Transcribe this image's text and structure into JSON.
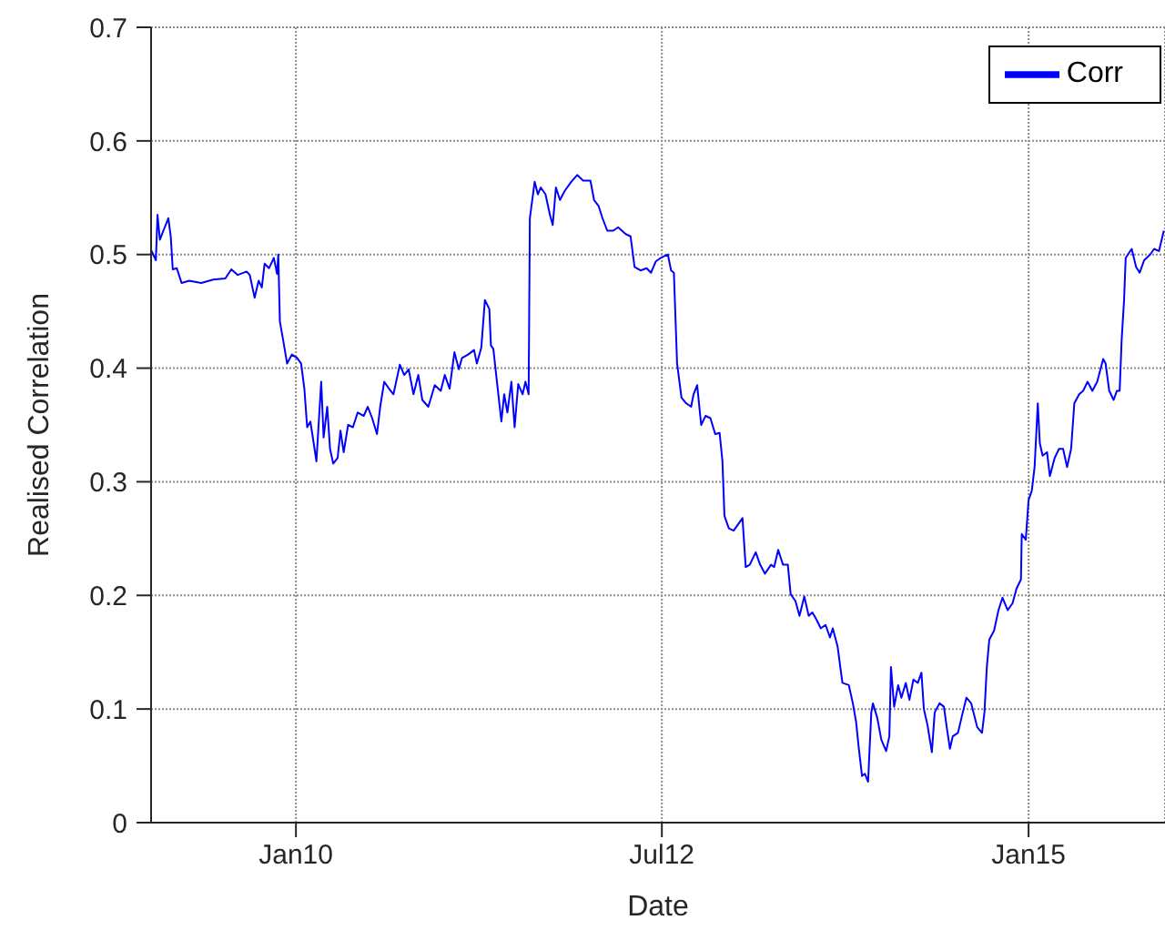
{
  "chart_data": {
    "type": "line",
    "xlabel": "Date",
    "ylabel": "Realised Correlation",
    "x": [
      "2009-01-05",
      "2009-01-17",
      "2009-01-21",
      "2009-01-27",
      "2009-02-08",
      "2009-02-17",
      "2009-02-23",
      "2009-02-28",
      "2009-03-10",
      "2009-03-22",
      "2009-04-10",
      "2009-05-10",
      "2009-06-09",
      "2009-07-09",
      "2009-07-24",
      "2009-08-09",
      "2009-08-31",
      "2009-09-08",
      "2009-09-20",
      "2009-09-30",
      "2009-10-08",
      "2009-10-15",
      "2009-10-26",
      "2009-11-07",
      "2009-11-15",
      "2009-11-18",
      "2009-11-22",
      "2009-11-30",
      "2009-12-10",
      "2009-12-22",
      "2010-01-04",
      "2010-01-14",
      "2010-01-22",
      "2010-01-29",
      "2010-02-06",
      "2010-02-13",
      "2010-02-21",
      "2010-03-05",
      "2010-03-11",
      "2010-03-20",
      "2010-03-27",
      "2010-04-04",
      "2010-04-15",
      "2010-04-22",
      "2010-04-30",
      "2010-05-11",
      "2010-05-23",
      "2010-06-04",
      "2010-06-19",
      "2010-06-29",
      "2010-07-10",
      "2010-07-22",
      "2010-07-30",
      "2010-08-09",
      "2010-08-21",
      "2010-09-01",
      "2010-09-17",
      "2010-09-28",
      "2010-10-09",
      "2010-10-21",
      "2010-11-02",
      "2010-11-12",
      "2010-11-27",
      "2010-12-13",
      "2010-12-28",
      "2011-01-07",
      "2011-01-19",
      "2011-01-31",
      "2011-02-11",
      "2011-02-19",
      "2011-03-06",
      "2011-03-21",
      "2011-03-28",
      "2011-04-08",
      "2011-04-17",
      "2011-04-28",
      "2011-05-02",
      "2011-05-08",
      "2011-05-17",
      "2011-05-28",
      "2011-06-04",
      "2011-06-12",
      "2011-06-22",
      "2011-06-30",
      "2011-07-09",
      "2011-07-20",
      "2011-07-27",
      "2011-08-04",
      "2011-08-07",
      "2011-08-19",
      "2011-08-27",
      "2011-09-03",
      "2011-09-15",
      "2011-09-26",
      "2011-10-03",
      "2011-10-11",
      "2011-10-21",
      "2011-11-02",
      "2011-11-18",
      "2011-12-03",
      "2011-12-18",
      "2012-01-05",
      "2012-01-14",
      "2012-01-25",
      "2012-02-04",
      "2012-02-16",
      "2012-03-02",
      "2012-03-14",
      "2012-04-02",
      "2012-04-14",
      "2012-04-24",
      "2012-05-09",
      "2012-05-24",
      "2012-06-04",
      "2012-06-16",
      "2012-06-28",
      "2012-07-16",
      "2012-07-24",
      "2012-07-31",
      "2012-08-08",
      "2012-08-19",
      "2012-08-31",
      "2012-09-12",
      "2012-09-18",
      "2012-09-27",
      "2012-10-07",
      "2012-10-18",
      "2012-10-30",
      "2012-11-11",
      "2012-11-22",
      "2012-11-29",
      "2012-12-04",
      "2012-12-15",
      "2012-12-27",
      "2013-01-06",
      "2013-01-18",
      "2013-01-26",
      "2013-02-05",
      "2013-02-20",
      "2013-03-03",
      "2013-03-15",
      "2013-03-30",
      "2013-04-07",
      "2013-04-17",
      "2013-04-29",
      "2013-05-11",
      "2013-05-18",
      "2013-05-30",
      "2013-06-09",
      "2013-06-21",
      "2013-07-02",
      "2013-07-11",
      "2013-07-21",
      "2013-08-01",
      "2013-08-13",
      "2013-08-24",
      "2013-08-31",
      "2013-09-12",
      "2013-09-24",
      "2013-10-10",
      "2013-10-20",
      "2013-10-28",
      "2013-11-04",
      "2013-11-12",
      "2013-11-19",
      "2013-11-27",
      "2013-12-05",
      "2013-12-09",
      "2013-12-20",
      "2013-12-30",
      "2014-01-11",
      "2014-01-19",
      "2014-01-23",
      "2014-01-31",
      "2014-02-10",
      "2014-02-18",
      "2014-03-01",
      "2014-03-10",
      "2014-03-20",
      "2014-03-31",
      "2014-04-09",
      "2014-04-15",
      "2014-04-24",
      "2014-05-05",
      "2014-05-12",
      "2014-05-24",
      "2014-06-04",
      "2014-06-11",
      "2014-06-19",
      "2014-06-26",
      "2014-07-09",
      "2014-07-19",
      "2014-07-30",
      "2014-08-11",
      "2014-08-26",
      "2014-09-07",
      "2014-09-13",
      "2014-09-19",
      "2014-09-25",
      "2014-10-07",
      "2014-10-18",
      "2014-10-28",
      "2014-11-10",
      "2014-11-22",
      "2014-12-02",
      "2014-12-13",
      "2014-12-15",
      "2014-12-25",
      "2015-01-01",
      "2015-01-09",
      "2015-01-16",
      "2015-01-24",
      "2015-01-29",
      "2015-02-05",
      "2015-02-16",
      "2015-02-23",
      "2015-03-07",
      "2015-03-18",
      "2015-03-28",
      "2015-04-07",
      "2015-04-17",
      "2015-04-25",
      "2015-05-07",
      "2015-05-17",
      "2015-05-28",
      "2015-06-09",
      "2015-06-21",
      "2015-07-06",
      "2015-07-12",
      "2015-07-21",
      "2015-08-01",
      "2015-08-09",
      "2015-08-16",
      "2015-08-21",
      "2015-08-27",
      "2015-08-31",
      "2015-09-15",
      "2015-09-26",
      "2015-10-05",
      "2015-10-16",
      "2015-10-31",
      "2015-11-10",
      "2015-11-22",
      "2015-12-04"
    ],
    "series": [
      {
        "name": "Corr",
        "color": "#0000ff",
        "values": [
          0.504,
          0.495,
          0.535,
          0.513,
          0.524,
          0.532,
          0.516,
          0.487,
          0.488,
          0.475,
          0.477,
          0.475,
          0.478,
          0.479,
          0.487,
          0.482,
          0.485,
          0.482,
          0.462,
          0.477,
          0.471,
          0.492,
          0.488,
          0.497,
          0.483,
          0.5,
          0.441,
          0.425,
          0.404,
          0.412,
          0.409,
          0.404,
          0.382,
          0.348,
          0.353,
          0.337,
          0.318,
          0.388,
          0.339,
          0.366,
          0.329,
          0.316,
          0.321,
          0.345,
          0.326,
          0.35,
          0.348,
          0.361,
          0.358,
          0.366,
          0.356,
          0.342,
          0.366,
          0.388,
          0.382,
          0.377,
          0.403,
          0.394,
          0.399,
          0.377,
          0.394,
          0.372,
          0.366,
          0.385,
          0.38,
          0.394,
          0.382,
          0.414,
          0.399,
          0.409,
          0.412,
          0.416,
          0.404,
          0.418,
          0.46,
          0.452,
          0.42,
          0.417,
          0.388,
          0.353,
          0.377,
          0.361,
          0.388,
          0.348,
          0.386,
          0.377,
          0.388,
          0.377,
          0.532,
          0.564,
          0.553,
          0.559,
          0.553,
          0.535,
          0.526,
          0.559,
          0.548,
          0.556,
          0.564,
          0.57,
          0.565,
          0.565,
          0.548,
          0.543,
          0.532,
          0.521,
          0.521,
          0.524,
          0.518,
          0.516,
          0.489,
          0.486,
          0.488,
          0.484,
          0.494,
          0.497,
          0.5,
          0.486,
          0.484,
          0.404,
          0.374,
          0.369,
          0.366,
          0.377,
          0.385,
          0.35,
          0.358,
          0.356,
          0.342,
          0.343,
          0.318,
          0.27,
          0.259,
          0.257,
          0.262,
          0.268,
          0.225,
          0.227,
          0.238,
          0.227,
          0.219,
          0.227,
          0.225,
          0.24,
          0.227,
          0.227,
          0.201,
          0.195,
          0.182,
          0.199,
          0.182,
          0.185,
          0.179,
          0.171,
          0.174,
          0.163,
          0.171,
          0.155,
          0.123,
          0.121,
          0.105,
          0.089,
          0.065,
          0.041,
          0.043,
          0.036,
          0.097,
          0.105,
          0.092,
          0.073,
          0.063,
          0.076,
          0.137,
          0.102,
          0.121,
          0.11,
          0.123,
          0.108,
          0.126,
          0.123,
          0.132,
          0.1,
          0.086,
          0.062,
          0.097,
          0.105,
          0.102,
          0.084,
          0.065,
          0.076,
          0.079,
          0.094,
          0.11,
          0.105,
          0.084,
          0.079,
          0.097,
          0.137,
          0.161,
          0.169,
          0.187,
          0.198,
          0.187,
          0.193,
          0.206,
          0.214,
          0.254,
          0.249,
          0.284,
          0.292,
          0.313,
          0.369,
          0.334,
          0.323,
          0.326,
          0.305,
          0.321,
          0.329,
          0.329,
          0.313,
          0.329,
          0.369,
          0.377,
          0.38,
          0.388,
          0.38,
          0.388,
          0.408,
          0.404,
          0.38,
          0.372,
          0.38,
          0.38,
          0.425,
          0.46,
          0.497,
          0.505,
          0.489,
          0.484,
          0.495,
          0.5,
          0.505,
          0.503,
          0.521
        ]
      }
    ],
    "xlim": [
      "2009-01-05",
      "2015-12-07"
    ],
    "xticks": [
      {
        "value": "2010-01-01",
        "label": "Jan10"
      },
      {
        "value": "2012-07-01",
        "label": "Jul12"
      },
      {
        "value": "2015-01-01",
        "label": "Jan15"
      }
    ],
    "ylim": [
      0,
      0.7
    ],
    "yticks": [
      0,
      0.1,
      0.2,
      0.3,
      0.4,
      0.5,
      0.6,
      0.7
    ],
    "grid": true,
    "legend": "top right",
    "line_style": "solid"
  }
}
